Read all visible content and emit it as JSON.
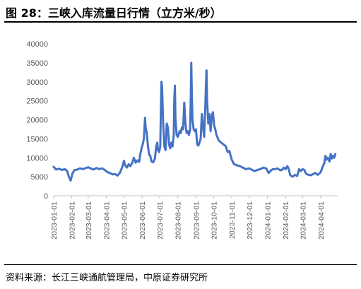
{
  "figure": {
    "title": "图 28：三峡入库流量日行情（立方米/秒）",
    "source": "资料来源：长江三峡通航管理局，中原证券研究所"
  },
  "chart_data": {
    "type": "line",
    "title": "三峡入库流量日行情（立方米/秒）",
    "xlabel": "",
    "ylabel": "",
    "ylim": [
      0,
      40000
    ],
    "yticks": [
      "0",
      "5000",
      "10000",
      "15000",
      "20000",
      "25000",
      "30000",
      "35000",
      "40000"
    ],
    "xticks": [
      "2023-01-01",
      "2023-02-01",
      "2023-03-01",
      "2023-04-01",
      "2023-05-01",
      "2023-06-01",
      "2023-07-01",
      "2023-08-01",
      "2023-09-01",
      "2023-10-01",
      "2023-11-01",
      "2023-12-01",
      "2024-01-01",
      "2024-02-01",
      "2024-03-01",
      "2024-04-01"
    ],
    "grid": false,
    "legend": "none",
    "series": [
      {
        "color": "#4472C4",
        "points": [
          [
            "2023-01-01",
            7600
          ],
          [
            "2023-01-05",
            6900
          ],
          [
            "2023-01-10",
            7100
          ],
          [
            "2023-01-15",
            6800
          ],
          [
            "2023-01-20",
            7000
          ],
          [
            "2023-01-24",
            6500
          ],
          [
            "2023-01-27",
            5000
          ],
          [
            "2023-01-30",
            4000
          ],
          [
            "2023-02-02",
            5800
          ],
          [
            "2023-02-05",
            6700
          ],
          [
            "2023-02-10",
            6900
          ],
          [
            "2023-02-15",
            7200
          ],
          [
            "2023-02-20",
            7000
          ],
          [
            "2023-02-25",
            7300
          ],
          [
            "2023-03-01",
            7500
          ],
          [
            "2023-03-05",
            7200
          ],
          [
            "2023-03-10",
            6900
          ],
          [
            "2023-03-15",
            7300
          ],
          [
            "2023-03-20",
            7000
          ],
          [
            "2023-03-25",
            7200
          ],
          [
            "2023-03-30",
            6700
          ],
          [
            "2023-04-03",
            6200
          ],
          [
            "2023-04-08",
            5900
          ],
          [
            "2023-04-12",
            5600
          ],
          [
            "2023-04-16",
            5700
          ],
          [
            "2023-04-20",
            5300
          ],
          [
            "2023-04-24",
            6000
          ],
          [
            "2023-04-28",
            7500
          ],
          [
            "2023-05-01",
            9200
          ],
          [
            "2023-05-03",
            8000
          ],
          [
            "2023-05-06",
            7400
          ],
          [
            "2023-05-09",
            8300
          ],
          [
            "2023-05-12",
            7800
          ],
          [
            "2023-05-15",
            8600
          ],
          [
            "2023-05-18",
            10000
          ],
          [
            "2023-05-21",
            8700
          ],
          [
            "2023-05-24",
            9300
          ],
          [
            "2023-05-27",
            8900
          ],
          [
            "2023-05-29",
            11000
          ],
          [
            "2023-05-31",
            12500
          ],
          [
            "2023-06-02",
            13500
          ],
          [
            "2023-06-04",
            15000
          ],
          [
            "2023-06-06",
            20500
          ],
          [
            "2023-06-07",
            18000
          ],
          [
            "2023-06-09",
            16500
          ],
          [
            "2023-06-11",
            13000
          ],
          [
            "2023-06-13",
            10800
          ],
          [
            "2023-06-15",
            10500
          ],
          [
            "2023-06-17",
            9000
          ],
          [
            "2023-06-20",
            8800
          ],
          [
            "2023-06-23",
            9800
          ],
          [
            "2023-06-25",
            13000
          ],
          [
            "2023-06-27",
            14000
          ],
          [
            "2023-06-28",
            12000
          ],
          [
            "2023-06-30",
            11500
          ],
          [
            "2023-07-02",
            13000
          ],
          [
            "2023-07-03",
            22000
          ],
          [
            "2023-07-04",
            30000
          ],
          [
            "2023-07-05",
            29000
          ],
          [
            "2023-07-07",
            19000
          ],
          [
            "2023-07-09",
            13000
          ],
          [
            "2023-07-11",
            12000
          ],
          [
            "2023-07-13",
            19000
          ],
          [
            "2023-07-15",
            18000
          ],
          [
            "2023-07-17",
            13500
          ],
          [
            "2023-07-19",
            12500
          ],
          [
            "2023-07-21",
            14000
          ],
          [
            "2023-07-23",
            13000
          ],
          [
            "2023-07-25",
            16000
          ],
          [
            "2023-07-26",
            25500
          ],
          [
            "2023-07-27",
            29000
          ],
          [
            "2023-07-28",
            20000
          ],
          [
            "2023-07-30",
            16000
          ],
          [
            "2023-08-01",
            15500
          ],
          [
            "2023-08-04",
            17000
          ],
          [
            "2023-08-06",
            16500
          ],
          [
            "2023-08-08",
            18000
          ],
          [
            "2023-08-10",
            17500
          ],
          [
            "2023-08-12",
            24500
          ],
          [
            "2023-08-14",
            19000
          ],
          [
            "2023-08-16",
            16500
          ],
          [
            "2023-08-18",
            17000
          ],
          [
            "2023-08-20",
            16000
          ],
          [
            "2023-08-22",
            17500
          ],
          [
            "2023-08-23",
            25000
          ],
          [
            "2023-08-24",
            35000
          ],
          [
            "2023-08-25",
            26000
          ],
          [
            "2023-08-26",
            20000
          ],
          [
            "2023-08-28",
            17500
          ],
          [
            "2023-08-30",
            17000
          ],
          [
            "2023-09-01",
            17500
          ],
          [
            "2023-09-03",
            13500
          ],
          [
            "2023-09-05",
            13200
          ],
          [
            "2023-09-07",
            14000
          ],
          [
            "2023-09-09",
            15000
          ],
          [
            "2023-09-11",
            21500
          ],
          [
            "2023-09-13",
            18000
          ],
          [
            "2023-09-15",
            15500
          ],
          [
            "2023-09-17",
            24000
          ],
          [
            "2023-09-18",
            29000
          ],
          [
            "2023-09-19",
            33000
          ],
          [
            "2023-09-20",
            25000
          ],
          [
            "2023-09-22",
            19000
          ],
          [
            "2023-09-24",
            21500
          ],
          [
            "2023-09-26",
            17000
          ],
          [
            "2023-09-28",
            21000
          ],
          [
            "2023-09-30",
            22000
          ],
          [
            "2023-10-02",
            18500
          ],
          [
            "2023-10-04",
            17500
          ],
          [
            "2023-10-06",
            16000
          ],
          [
            "2023-10-10",
            14500
          ],
          [
            "2023-10-14",
            14000
          ],
          [
            "2023-10-18",
            13500
          ],
          [
            "2023-10-22",
            13000
          ],
          [
            "2023-10-25",
            11500
          ],
          [
            "2023-10-28",
            11800
          ],
          [
            "2023-11-01",
            9500
          ],
          [
            "2023-11-05",
            8300
          ],
          [
            "2023-11-10",
            8000
          ],
          [
            "2023-11-15",
            7800
          ],
          [
            "2023-11-20",
            7400
          ],
          [
            "2023-11-25",
            7000
          ],
          [
            "2023-12-01",
            7200
          ],
          [
            "2023-12-06",
            6800
          ],
          [
            "2023-12-10",
            6500
          ],
          [
            "2023-12-15",
            6800
          ],
          [
            "2023-12-20",
            7000
          ],
          [
            "2023-12-25",
            7400
          ],
          [
            "2023-12-30",
            7200
          ],
          [
            "2024-01-03",
            6000
          ],
          [
            "2024-01-06",
            6500
          ],
          [
            "2024-01-10",
            7000
          ],
          [
            "2024-01-15",
            7000
          ],
          [
            "2024-01-18",
            7200
          ],
          [
            "2024-01-22",
            6800
          ],
          [
            "2024-01-25",
            6700
          ],
          [
            "2024-01-29",
            7400
          ],
          [
            "2024-02-01",
            7000
          ],
          [
            "2024-02-04",
            7800
          ],
          [
            "2024-02-06",
            7200
          ],
          [
            "2024-02-09",
            5400
          ],
          [
            "2024-02-13",
            5000
          ],
          [
            "2024-02-17",
            5500
          ],
          [
            "2024-02-21",
            5200
          ],
          [
            "2024-02-24",
            7000
          ],
          [
            "2024-02-27",
            6500
          ],
          [
            "2024-03-01",
            7000
          ],
          [
            "2024-03-04",
            6800
          ],
          [
            "2024-03-07",
            5800
          ],
          [
            "2024-03-11",
            5500
          ],
          [
            "2024-03-15",
            5400
          ],
          [
            "2024-03-19",
            5700
          ],
          [
            "2024-03-23",
            6000
          ],
          [
            "2024-03-27",
            5500
          ],
          [
            "2024-04-01",
            6200
          ],
          [
            "2024-04-04",
            7500
          ],
          [
            "2024-04-07",
            8500
          ],
          [
            "2024-04-09",
            10500
          ],
          [
            "2024-04-11",
            9500
          ],
          [
            "2024-04-13",
            10000
          ],
          [
            "2024-04-16",
            9000
          ],
          [
            "2024-04-18",
            11000
          ],
          [
            "2024-04-20",
            9800
          ],
          [
            "2024-04-22",
            10500
          ],
          [
            "2024-04-24",
            10000
          ],
          [
            "2024-04-26",
            11000
          ]
        ]
      }
    ]
  }
}
